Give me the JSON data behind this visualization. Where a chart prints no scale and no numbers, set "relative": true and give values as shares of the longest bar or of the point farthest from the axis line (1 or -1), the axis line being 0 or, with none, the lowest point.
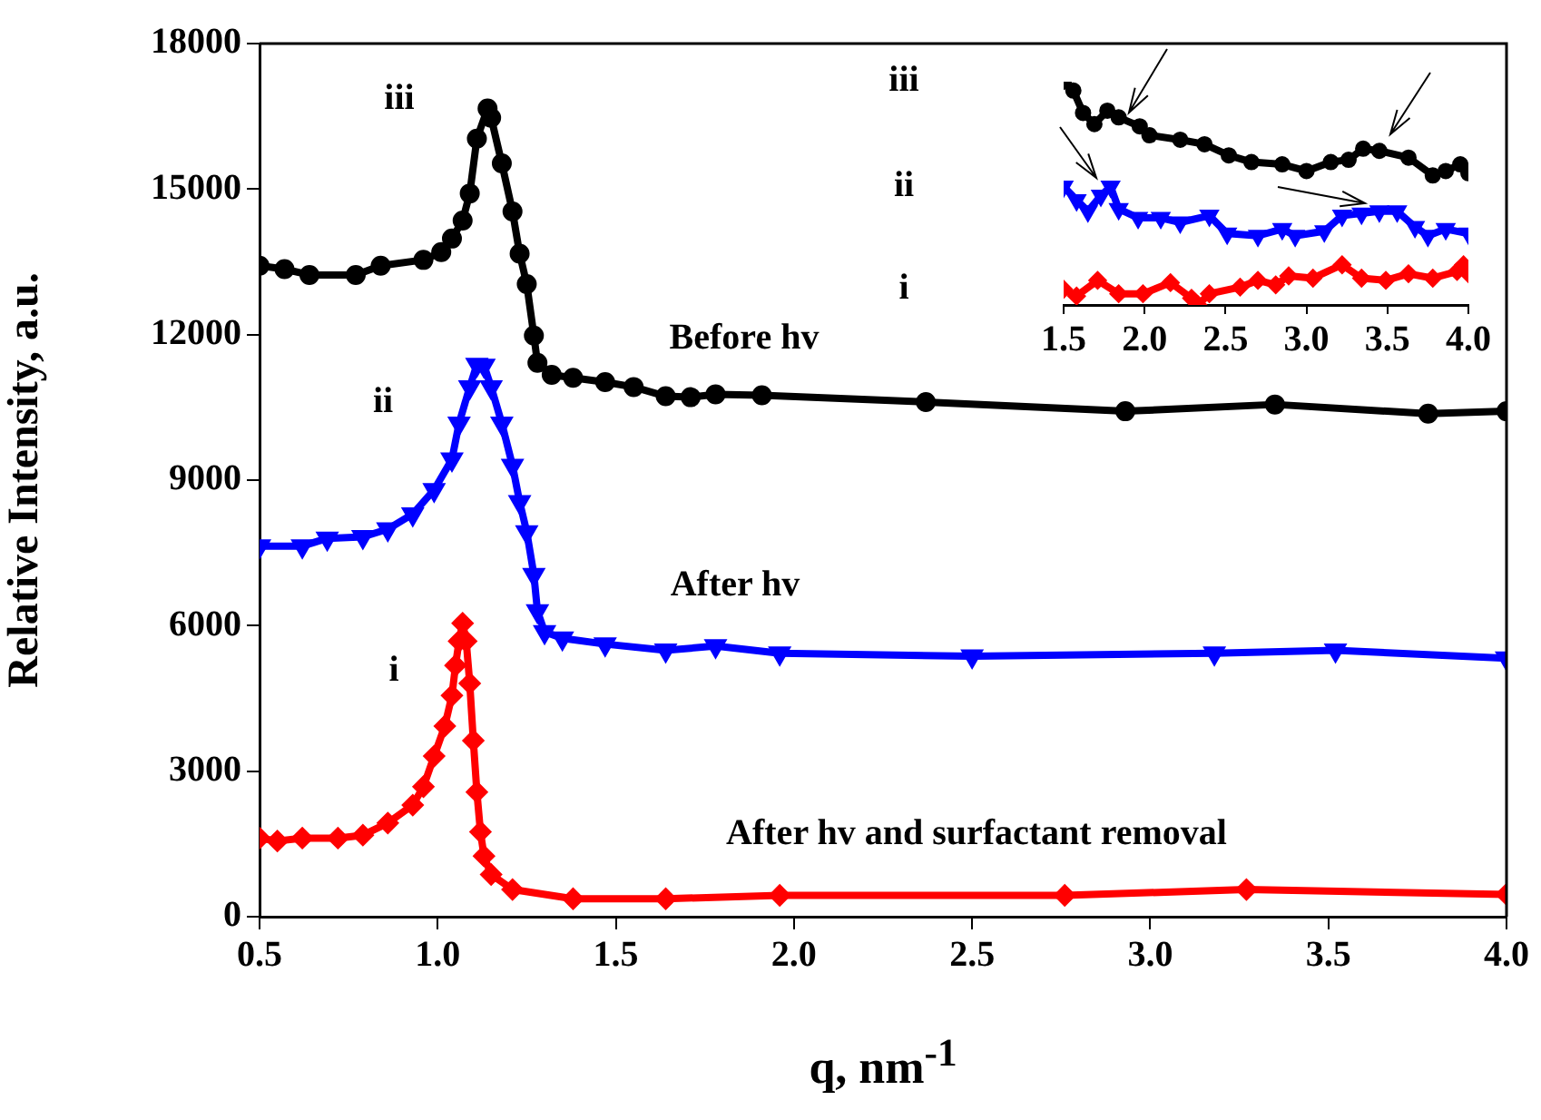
{
  "chart_data": [
    {
      "type": "line",
      "xlabel": "q, nm$^{-1}$",
      "ylabel": "Relative Intensity, a.u.",
      "legend": false,
      "grid": false,
      "xlim": [
        0.5,
        4.0
      ],
      "xticks": [
        {
          "value": 0.5,
          "label": "0.5"
        },
        {
          "value": 1,
          "label": "1.0"
        },
        {
          "value": 1.5,
          "label": "1.5"
        },
        {
          "value": 2,
          "label": "2.0"
        },
        {
          "value": 2.5,
          "label": "2.5"
        },
        {
          "value": 3,
          "label": "3.0"
        },
        {
          "value": 3.5,
          "label": "3.5"
        },
        {
          "value": 4,
          "label": "4.0"
        }
      ],
      "ylim": [
        0,
        18000
      ],
      "yticks": [
        0,
        3000,
        6000,
        9000,
        12000,
        15000,
        18000
      ],
      "annotations": [
        "iii",
        "ii",
        "i",
        "Before hv",
        "After hv",
        "After hv and surfactant removal"
      ],
      "series": [
        {
          "color": "#000000",
          "marker": "circle",
          "x": [
            0.5,
            0.57,
            0.64,
            0.77,
            0.84,
            0.96,
            1.01,
            1.04,
            1.07,
            1.09,
            1.11,
            1.14,
            1.15,
            1.18,
            1.21,
            1.23,
            1.25,
            1.27,
            1.28,
            1.32,
            1.38,
            1.47,
            1.55,
            1.64,
            1.71,
            1.78,
            1.91,
            2.37,
            2.93,
            3.35,
            3.78,
            4.0
          ],
          "values": [
            13420,
            13350,
            13230,
            13230,
            13420,
            13540,
            13700,
            13980,
            14350,
            14910,
            16040,
            16660,
            16470,
            15530,
            14540,
            13670,
            13040,
            11980,
            11420,
            11170,
            11110,
            11020,
            10920,
            10730,
            10710,
            10770,
            10750,
            10610,
            10420,
            10560,
            10370,
            10420
          ]
        },
        {
          "color": "#0000ff",
          "marker": "triangle",
          "x": [
            0.5,
            0.62,
            0.69,
            0.79,
            0.86,
            0.93,
            0.99,
            1.04,
            1.06,
            1.09,
            1.11,
            1.13,
            1.15,
            1.18,
            1.21,
            1.23,
            1.25,
            1.27,
            1.28,
            1.3,
            1.35,
            1.47,
            1.64,
            1.78,
            1.96,
            2.5,
            3.18,
            3.52,
            4.0
          ],
          "values": [
            7640,
            7640,
            7800,
            7830,
            7990,
            8300,
            8800,
            9430,
            10170,
            10920,
            11380,
            11360,
            10920,
            10170,
            9300,
            8550,
            7930,
            7050,
            6300,
            5870,
            5740,
            5620,
            5490,
            5580,
            5430,
            5370,
            5430,
            5490,
            5330
          ]
        },
        {
          "color": "#ff0000",
          "marker": "diamond",
          "x": [
            0.5,
            0.55,
            0.62,
            0.72,
            0.79,
            0.86,
            0.93,
            0.96,
            0.99,
            1.02,
            1.04,
            1.05,
            1.06,
            1.07,
            1.08,
            1.09,
            1.1,
            1.11,
            1.12,
            1.13,
            1.15,
            1.21,
            1.38,
            1.64,
            1.96,
            2.76,
            3.27,
            4.0
          ],
          "values": [
            1620,
            1560,
            1620,
            1620,
            1680,
            1930,
            2300,
            2680,
            3310,
            3930,
            4560,
            5180,
            5680,
            6050,
            5680,
            4810,
            3630,
            2570,
            1750,
            1250,
            870,
            560,
            370,
            370,
            440,
            440,
            560,
            460
          ]
        }
      ]
    },
    {
      "type": "line",
      "relative": true,
      "legend": false,
      "grid": false,
      "xlim": [
        1.5,
        4.0
      ],
      "xticks": [
        {
          "value": 1.5,
          "label": "1.5"
        },
        {
          "value": 2,
          "label": "2.0"
        },
        {
          "value": 2.5,
          "label": "2.5"
        },
        {
          "value": 3,
          "label": "3.0"
        },
        {
          "value": 3.5,
          "label": "3.5"
        },
        {
          "value": 4,
          "label": "4.0"
        }
      ],
      "annotations": [
        "iii",
        "ii",
        "i"
      ],
      "series": [
        {
          "color": "#000000",
          "marker": "circle",
          "x": [
            1.5,
            1.56,
            1.62,
            1.69,
            1.77,
            1.84,
            1.97,
            2.03,
            2.22,
            2.37,
            2.52,
            2.66,
            2.85,
            3.0,
            3.15,
            3.26,
            3.35,
            3.45,
            3.63,
            3.78,
            3.86,
            3.95,
            4.0
          ],
          "values": [
            1.0,
            0.96,
            0.86,
            0.81,
            0.87,
            0.84,
            0.8,
            0.76,
            0.74,
            0.72,
            0.67,
            0.64,
            0.63,
            0.6,
            0.64,
            0.65,
            0.7,
            0.69,
            0.66,
            0.58,
            0.6,
            0.63,
            0.59
          ]
        },
        {
          "color": "#0000ff",
          "marker": "triangle",
          "x": [
            1.5,
            1.58,
            1.65,
            1.73,
            1.79,
            1.84,
            1.96,
            2.1,
            2.22,
            2.4,
            2.51,
            2.7,
            2.85,
            2.93,
            3.11,
            3.22,
            3.34,
            3.45,
            3.56,
            3.67,
            3.75,
            3.86,
            4.0
          ],
          "values": [
            0.53,
            0.47,
            0.42,
            0.49,
            0.53,
            0.43,
            0.39,
            0.39,
            0.37,
            0.4,
            0.32,
            0.31,
            0.34,
            0.31,
            0.33,
            0.4,
            0.41,
            0.42,
            0.42,
            0.35,
            0.31,
            0.34,
            0.32
          ]
        },
        {
          "color": "#ff0000",
          "marker": "diamond",
          "x": [
            1.5,
            1.58,
            1.71,
            1.84,
            1.99,
            2.16,
            2.29,
            2.33,
            2.4,
            2.59,
            2.7,
            2.81,
            2.89,
            3.04,
            3.22,
            3.34,
            3.49,
            3.63,
            3.78,
            3.93,
            3.97,
            4.0
          ],
          "values": [
            0.07,
            0.04,
            0.11,
            0.05,
            0.05,
            0.1,
            0.03,
            0,
            0.05,
            0.08,
            0.11,
            0.09,
            0.13,
            0.12,
            0.18,
            0.12,
            0.11,
            0.14,
            0.12,
            0.15,
            0.18,
            0.14
          ]
        }
      ]
    }
  ]
}
